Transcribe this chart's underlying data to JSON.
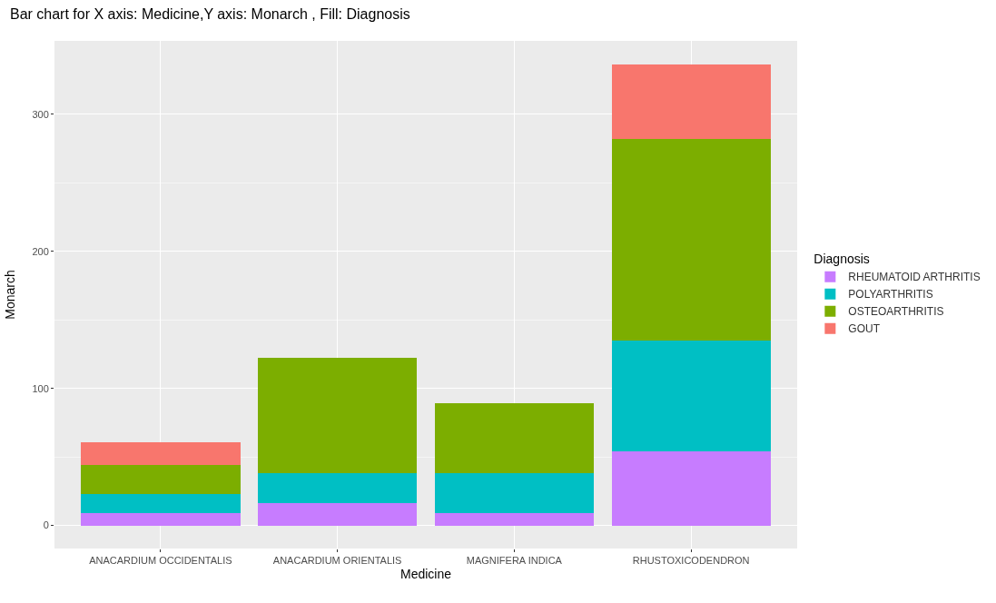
{
  "chart_data": {
    "type": "bar",
    "title": "Bar chart for X axis: Medicine,Y axis: Monarch , Fill: Diagnosis",
    "xlabel": "Medicine",
    "ylabel": "Monarch",
    "legend_title": "Diagnosis",
    "categories": [
      "ANACARDIUM OCCIDENTALIS",
      "ANACARDIUM ORIENTALIS",
      "MAGNIFERA INDICA",
      "RHUSTOXICODENDRON"
    ],
    "stacked": true,
    "series": [
      {
        "name": "RHEUMATOID ARTHRITIS",
        "color": "#c77cff",
        "values": [
          9,
          16,
          9,
          54
        ]
      },
      {
        "name": "POLYARTHRITIS",
        "color": "#00bfc4",
        "values": [
          14,
          22,
          29,
          81
        ]
      },
      {
        "name": "OSTEOARTHRITIS",
        "color": "#7cae00",
        "values": [
          21,
          84,
          51,
          147
        ]
      },
      {
        "name": "GOUT",
        "color": "#f8766d",
        "values": [
          17,
          null,
          null,
          54
        ]
      }
    ],
    "ylim": [
      -16.8,
      353.5
    ],
    "yticks": [
      0,
      100,
      200,
      300
    ],
    "grid": true,
    "legend": "right"
  }
}
